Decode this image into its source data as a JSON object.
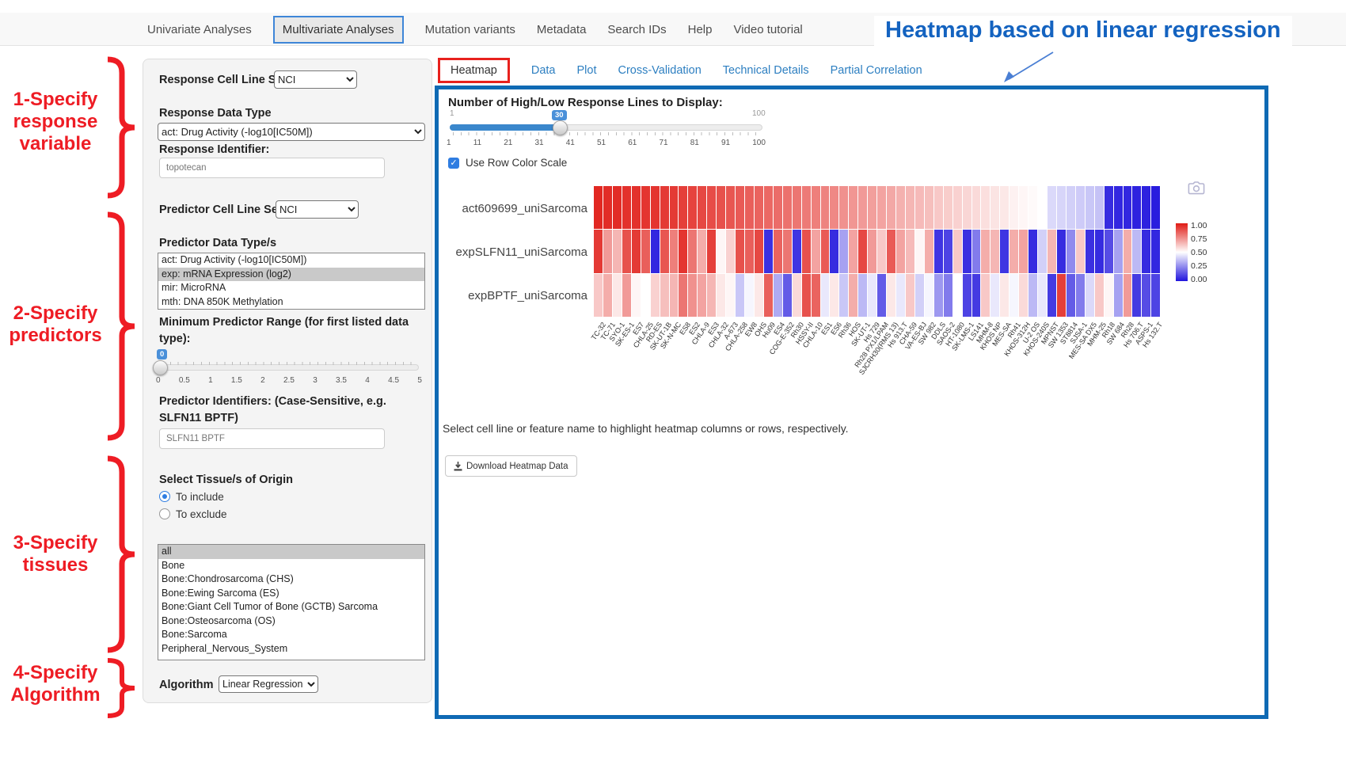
{
  "nav": {
    "items": [
      {
        "label": "Univariate Analyses",
        "active": false
      },
      {
        "label": "Multivariate Analyses",
        "active": true
      },
      {
        "label": "Mutation variants",
        "active": false
      },
      {
        "label": "Metadata",
        "active": false
      },
      {
        "label": "Search IDs",
        "active": false
      },
      {
        "label": "Help",
        "active": false
      },
      {
        "label": "Video tutorial",
        "active": false
      }
    ]
  },
  "annotations": {
    "title": "Heatmap based on linear regression",
    "accent_red": "#ee1c24",
    "accent_blue": "#1463c0",
    "steps": [
      {
        "lines": [
          "1-Specify",
          "response",
          "variable"
        ]
      },
      {
        "lines": [
          "2-Specify",
          "predictors"
        ]
      },
      {
        "lines": [
          "3-Specify",
          "tissues"
        ]
      },
      {
        "lines": [
          "4-Specify",
          "Algorithm"
        ]
      }
    ]
  },
  "sidebar": {
    "response_cell_line_set_label": "Response Cell Line Set",
    "response_cell_line_set_value": "NCI",
    "response_data_type_label": "Response Data Type",
    "response_data_type_value": "act: Drug Activity (-log10[IC50M])",
    "response_identifier_label": "Response Identifier:",
    "response_identifier_value": "topotecan",
    "predictor_cell_line_set_label": "Predictor Cell Line Set",
    "predictor_cell_line_set_value": "NCI",
    "predictor_data_types_label": "Predictor Data Type/s",
    "predictor_data_types_options": [
      "act: Drug Activity (-log10[IC50M])",
      "exp: mRNA Expression (log2)",
      "mir: MicroRNA",
      "mth: DNA 850K Methylation"
    ],
    "predictor_data_types_selected": "exp: mRNA Expression (log2)",
    "min_predictor_range_label": "Minimum Predictor Range (for first listed data type):",
    "min_predictor_range_value": "0",
    "min_predictor_range_ticks": [
      "0",
      "0.5",
      "1",
      "1.5",
      "2",
      "2.5",
      "3",
      "3.5",
      "4",
      "4.5",
      "5"
    ],
    "predictor_identifiers_label": "Predictor Identifiers: (Case-Sensitive, e.g. SLFN11 BPTF)",
    "predictor_identifiers_value": "SLFN11 BPTF",
    "tissue_label": "Select Tissue/s of Origin",
    "tissue_radio_include": "To include",
    "tissue_radio_exclude": "To exclude",
    "tissue_radio_selected": "To include",
    "tissue_options": [
      "all",
      "Bone",
      "Bone:Chondrosarcoma (CHS)",
      "Bone:Ewing Sarcoma (ES)",
      "Bone:Giant Cell Tumor of Bone (GCTB) Sarcoma",
      "Bone:Osteosarcoma (OS)",
      "Bone:Sarcoma",
      "Peripheral_Nervous_System"
    ],
    "tissue_selected": "all",
    "algorithm_label": "Algorithm",
    "algorithm_value": "Linear Regression"
  },
  "main": {
    "tabs": [
      {
        "label": "Heatmap",
        "active": true
      },
      {
        "label": "Data",
        "active": false
      },
      {
        "label": "Plot",
        "active": false
      },
      {
        "label": "Cross-Validation",
        "active": false
      },
      {
        "label": "Technical Details",
        "active": false
      },
      {
        "label": "Partial Correlation",
        "active": false
      }
    ],
    "slider": {
      "label": "Number of High/Low Response Lines to Display:",
      "min_label": "1",
      "max_label": "100",
      "value": "30",
      "ticks": [
        "1",
        "11",
        "21",
        "31",
        "41",
        "51",
        "61",
        "71",
        "81",
        "91",
        "100"
      ]
    },
    "row_color_scale_label": "Use Row Color Scale",
    "row_color_scale_checked": true,
    "note": "Select cell line or feature name to highlight heatmap columns or rows, respectively.",
    "download_button_label": "Download Heatmap Data"
  },
  "chart_data": {
    "type": "heatmap",
    "title": "",
    "rows": [
      "act609699_uniSarcoma",
      "expSLFN11_uniSarcoma",
      "expBPTF_uniSarcoma"
    ],
    "columns": [
      "TC-32",
      "TC-71",
      "SYO-1",
      "SK-ES-1",
      "ES7",
      "CHLA-25",
      "RD-ES",
      "SK-UT-1B",
      "SK-N-MC",
      "ES8",
      "ES2",
      "CHLA-9",
      "ES3",
      "CHLA-32",
      "A-673",
      "CHLA-258",
      "EW8",
      "OHS",
      "Hu09",
      "ES4",
      "COG-E-352",
      "Rh30",
      "HSSY-II",
      "CHLA-10",
      "ES1",
      "ES6",
      "Rh36",
      "HOS",
      "SK-UT-1",
      "Hs 729",
      "Rh28 PX1/LPAM",
      "SJCRH30(RMS 13)",
      "Hs 913.T",
      "CHA-59",
      "VA-ES-BJ",
      "SW 982",
      "DDLS",
      "SAOS-2",
      "HT-1080",
      "SK-LMS-1",
      "LS141",
      "MHM-8",
      "KHOS NP",
      "MES-SA",
      "Rh41",
      "KHOS-312H",
      "U-2 OS",
      "KHOS-240S",
      "MPNST",
      "SW 1353",
      "ST8814",
      "SJSA-1",
      "MES-SA DX5",
      "MHM-25",
      "Rh18",
      "SW 684",
      "Rh28",
      "Hs 706.T",
      "ASPS-1",
      "Hs 132.T"
    ],
    "values": [
      [
        0.97,
        0.96,
        0.96,
        0.95,
        0.95,
        0.94,
        0.94,
        0.93,
        0.93,
        0.92,
        0.91,
        0.9,
        0.89,
        0.88,
        0.87,
        0.86,
        0.85,
        0.84,
        0.83,
        0.82,
        0.81,
        0.8,
        0.79,
        0.78,
        0.77,
        0.76,
        0.74,
        0.73,
        0.72,
        0.71,
        0.7,
        0.69,
        0.67,
        0.66,
        0.65,
        0.64,
        0.62,
        0.61,
        0.6,
        0.59,
        0.58,
        0.57,
        0.56,
        0.55,
        0.53,
        0.52,
        0.51,
        0.5,
        0.42,
        0.41,
        0.4,
        0.39,
        0.38,
        0.37,
        0.05,
        0.04,
        0.04,
        0.03,
        0.03,
        0.02
      ],
      [
        0.93,
        0.72,
        0.66,
        0.88,
        0.93,
        0.85,
        0.04,
        0.87,
        0.78,
        0.94,
        0.8,
        0.68,
        0.92,
        0.52,
        0.6,
        0.88,
        0.85,
        0.9,
        0.06,
        0.84,
        0.8,
        0.07,
        0.88,
        0.7,
        0.86,
        0.05,
        0.3,
        0.7,
        0.9,
        0.72,
        0.62,
        0.86,
        0.7,
        0.65,
        0.52,
        0.68,
        0.07,
        0.1,
        0.62,
        0.06,
        0.22,
        0.68,
        0.66,
        0.07,
        0.68,
        0.7,
        0.05,
        0.4,
        0.66,
        0.05,
        0.25,
        0.62,
        0.06,
        0.05,
        0.12,
        0.3,
        0.68,
        0.35,
        0.05,
        0.04
      ],
      [
        0.62,
        0.68,
        0.55,
        0.72,
        0.52,
        0.5,
        0.6,
        0.64,
        0.66,
        0.8,
        0.74,
        0.7,
        0.66,
        0.55,
        0.52,
        0.38,
        0.48,
        0.55,
        0.85,
        0.32,
        0.15,
        0.58,
        0.88,
        0.84,
        0.45,
        0.55,
        0.38,
        0.68,
        0.35,
        0.45,
        0.15,
        0.55,
        0.45,
        0.62,
        0.4,
        0.48,
        0.28,
        0.22,
        0.5,
        0.1,
        0.08,
        0.62,
        0.45,
        0.55,
        0.48,
        0.58,
        0.35,
        0.45,
        0.08,
        0.92,
        0.15,
        0.22,
        0.42,
        0.62,
        0.52,
        0.3,
        0.72,
        0.08,
        0.12,
        0.1
      ]
    ],
    "value_range": [
      0,
      1
    ],
    "colorscale": {
      "low": "#2014dd",
      "mid": "#ffffff",
      "high": "#e01a14"
    },
    "colorbar_ticks": [
      "1.00",
      "0.75",
      "0.50",
      "0.25",
      "0.00"
    ],
    "legend_position": "right",
    "grid": false
  }
}
